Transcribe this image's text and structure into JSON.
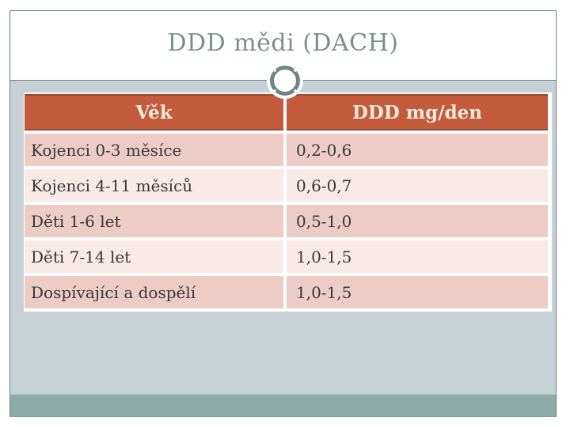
{
  "slide": {
    "title": "DDD mědi (DACH)",
    "table": {
      "col1_header": "Věk",
      "col2_header": "DDD mg/den",
      "rows": [
        {
          "label": "Kojenci 0-3 měsíce",
          "value": "0,2-0,6"
        },
        {
          "label": "Kojenci 4-11 měsíců",
          "value": "0,6-0,7"
        },
        {
          "label": "Děti 1-6 let",
          "value": "0,5-1,0"
        },
        {
          "label": "Děti 7-14 let",
          "value": "1,0-1,5"
        },
        {
          "label": "Dospívající a dospělí",
          "value": "1,0-1,5"
        }
      ]
    }
  },
  "colors": {
    "header_bg": "#c45b3d",
    "header_border": "#9e4a31",
    "header_text": "#f3ead9",
    "row_odd": "#ecccc5",
    "row_even": "#f8eae7",
    "content_bg": "#c7d1d5",
    "footer_bar": "#8caaa6",
    "frame_border": "#68807e",
    "title_text": "#7b908d",
    "ornament": "#6e8683",
    "body_text": "#383838"
  }
}
